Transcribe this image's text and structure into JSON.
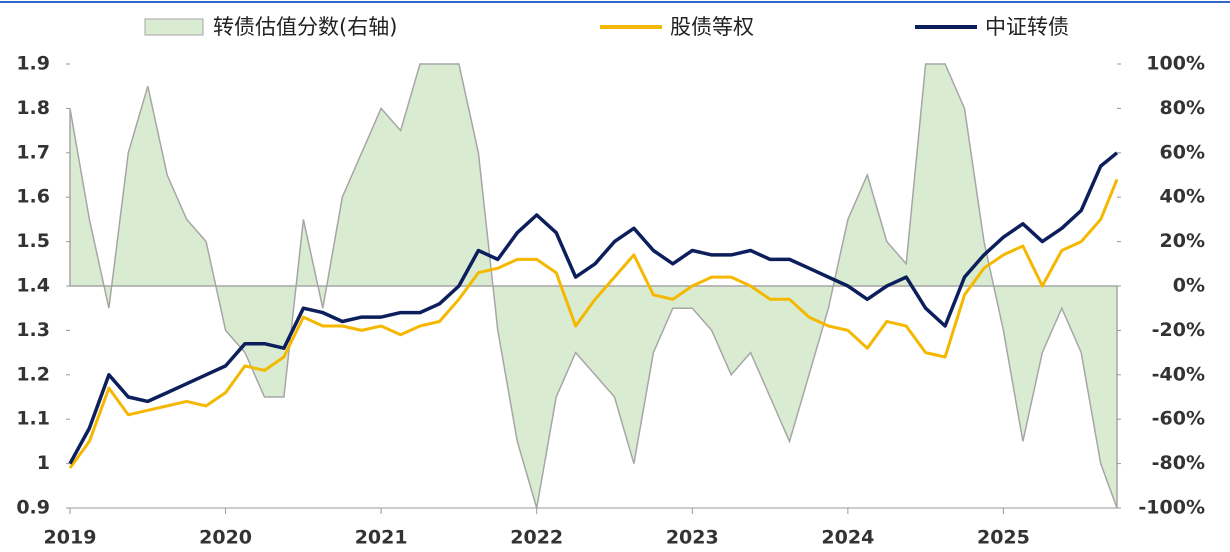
{
  "chart_data": {
    "type": "line",
    "x": [
      2019,
      2019.125,
      2019.25,
      2019.375,
      2019.5,
      2019.625,
      2019.75,
      2019.875,
      2020,
      2020.125,
      2020.25,
      2020.375,
      2020.5,
      2020.625,
      2020.75,
      2020.875,
      2021,
      2021.125,
      2021.25,
      2021.375,
      2021.5,
      2021.625,
      2021.75,
      2021.875,
      2022,
      2022.125,
      2022.25,
      2022.375,
      2022.5,
      2022.625,
      2022.75,
      2022.875,
      2023,
      2023.125,
      2023.25,
      2023.375,
      2023.5,
      2023.625,
      2023.75,
      2023.875,
      2024,
      2024.125,
      2024.25,
      2024.375,
      2024.5,
      2024.625,
      2024.75,
      2024.875,
      2025,
      2025.125,
      2025.25,
      2025.375,
      2025.5,
      2025.625,
      2025.73
    ],
    "series": [
      {
        "name": "转债估值分数(右轴)",
        "type": "area",
        "axis": "y2",
        "color": "#d9ecd2",
        "stroke": "#a6a6a6",
        "values": [
          80,
          30,
          -10,
          60,
          90,
          50,
          30,
          20,
          -20,
          -30,
          -50,
          -50,
          30,
          -10,
          40,
          60,
          80,
          70,
          100,
          100,
          100,
          60,
          -20,
          -70,
          -100,
          -50,
          -30,
          -40,
          -50,
          -80,
          -30,
          -10,
          -10,
          -20,
          -40,
          -30,
          -50,
          -70,
          -40,
          -10,
          30,
          50,
          20,
          10,
          100,
          100,
          80,
          20,
          -20,
          -70,
          -30,
          -10,
          -30,
          -80,
          -100
        ]
      },
      {
        "name": "股债等权",
        "type": "line",
        "color": "#f5b800",
        "values": [
          0.99,
          1.05,
          1.17,
          1.11,
          1.12,
          1.13,
          1.14,
          1.13,
          1.16,
          1.22,
          1.21,
          1.24,
          1.33,
          1.31,
          1.31,
          1.3,
          1.31,
          1.29,
          1.31,
          1.32,
          1.37,
          1.43,
          1.44,
          1.46,
          1.46,
          1.43,
          1.31,
          1.37,
          1.42,
          1.47,
          1.38,
          1.37,
          1.4,
          1.42,
          1.42,
          1.4,
          1.37,
          1.37,
          1.33,
          1.31,
          1.3,
          1.26,
          1.32,
          1.31,
          1.25,
          1.24,
          1.38,
          1.44,
          1.47,
          1.49,
          1.4,
          1.48,
          1.5,
          1.55,
          1.64
        ]
      },
      {
        "name": "中证转债",
        "type": "line",
        "color": "#0c1f5c",
        "values": [
          1.0,
          1.08,
          1.2,
          1.15,
          1.14,
          1.16,
          1.18,
          1.2,
          1.22,
          1.27,
          1.27,
          1.26,
          1.35,
          1.34,
          1.32,
          1.33,
          1.33,
          1.34,
          1.34,
          1.36,
          1.4,
          1.48,
          1.46,
          1.52,
          1.56,
          1.52,
          1.42,
          1.45,
          1.5,
          1.53,
          1.48,
          1.45,
          1.48,
          1.47,
          1.47,
          1.48,
          1.46,
          1.46,
          1.44,
          1.42,
          1.4,
          1.37,
          1.4,
          1.42,
          1.35,
          1.31,
          1.42,
          1.47,
          1.51,
          1.54,
          1.5,
          1.53,
          1.57,
          1.67,
          1.7
        ]
      }
    ],
    "xlim": [
      2019,
      2025.73
    ],
    "xticks": [
      2019,
      2020,
      2021,
      2022,
      2023,
      2024,
      2025
    ],
    "ylim": [
      0.9,
      1.9
    ],
    "yticks": [
      0.9,
      1,
      1.1,
      1.2,
      1.3,
      1.4,
      1.5,
      1.6,
      1.7,
      1.8,
      1.9
    ],
    "y2lim": [
      -100,
      100
    ],
    "y2ticks": [
      {
        "value": -100,
        "label": "-100%"
      },
      {
        "value": -80,
        "label": "-80%"
      },
      {
        "value": -60,
        "label": "-60%"
      },
      {
        "value": -40,
        "label": "-40%"
      },
      {
        "value": -20,
        "label": "-20%"
      },
      {
        "value": 0,
        "label": "0%"
      },
      {
        "value": 20,
        "label": "20%"
      },
      {
        "value": 40,
        "label": "40%"
      },
      {
        "value": 60,
        "label": "60%"
      },
      {
        "value": 80,
        "label": "80%"
      },
      {
        "value": 100,
        "label": "100%"
      }
    ],
    "legend": "top"
  }
}
